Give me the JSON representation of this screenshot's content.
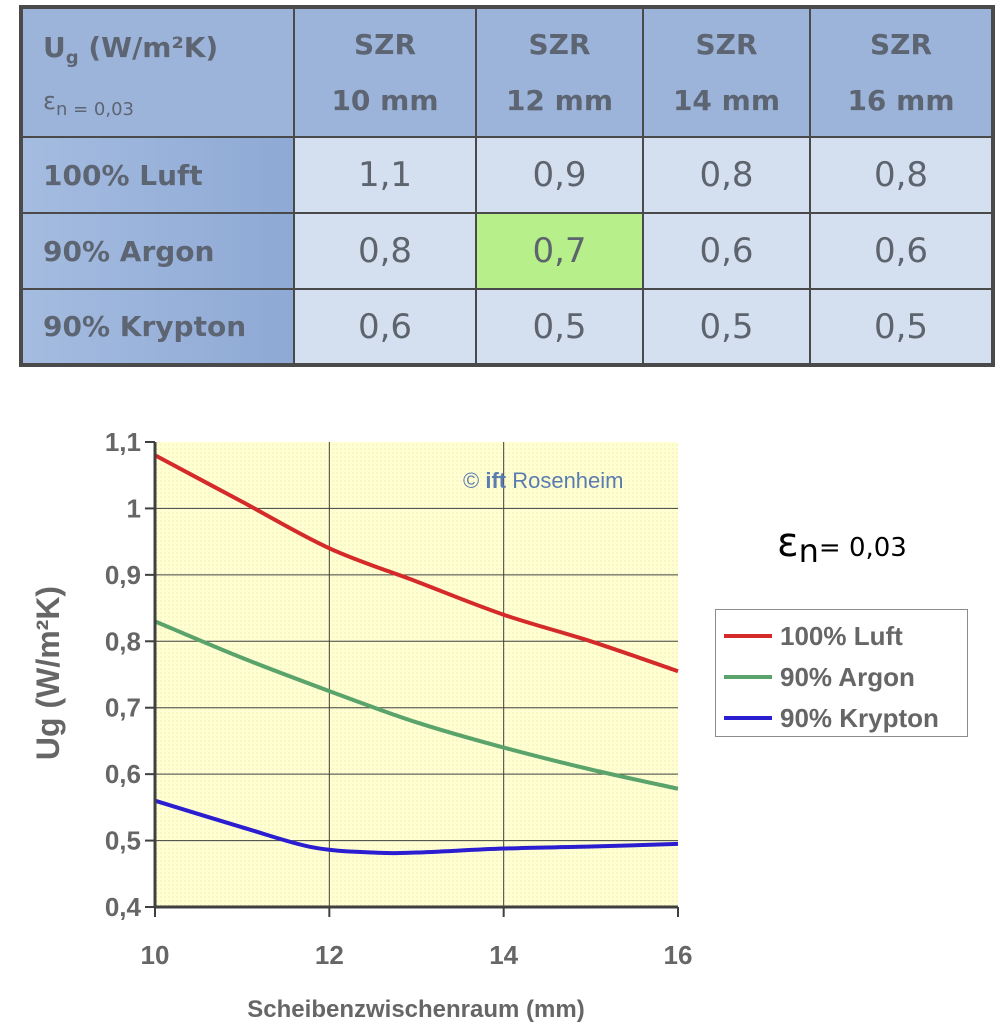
{
  "table": {
    "corner_title_main": "U",
    "corner_title_sub": "g",
    "corner_title_unit": " (W/m²K)",
    "corner_eps_symbol": "ε",
    "corner_eps_sub": "n = 0,03",
    "columns": [
      {
        "line1": "SZR",
        "line2": "10 mm"
      },
      {
        "line1": "SZR",
        "line2": "12 mm"
      },
      {
        "line1": "SZR",
        "line2": "14 mm"
      },
      {
        "line1": "SZR",
        "line2": "16 mm"
      }
    ],
    "rows": [
      {
        "label": "100% Luft",
        "values": [
          "1,1",
          "0,9",
          "0,8",
          "0,8"
        ]
      },
      {
        "label": "90% Argon",
        "values": [
          "0,8",
          "0,7",
          "0,6",
          "0,6"
        ]
      },
      {
        "label": "90% Krypton",
        "values": [
          "0,6",
          "0,5",
          "0,5",
          "0,5"
        ]
      }
    ],
    "highlight_color": "#b7f08a"
  },
  "chart_data": {
    "type": "line",
    "title": "",
    "xlabel": "Scheibenzwischenraum (mm)",
    "ylabel": "Ug (W/m²K)",
    "xlim": [
      10,
      16
    ],
    "ylim": [
      0.4,
      1.1
    ],
    "x_ticks": [
      "10",
      "12",
      "14",
      "16"
    ],
    "y_ticks": [
      "1,1",
      "1",
      "0,9",
      "0,8",
      "0,7",
      "0,6",
      "0,5",
      "0,4"
    ],
    "grid": true,
    "legend_position": "right",
    "watermark_prefix": "© ",
    "watermark_bold": "ift",
    "watermark_rest": " Rosenheim",
    "annotation_symbol": "ε",
    "annotation_sub": "n",
    "annotation_text": "= 0,03",
    "series": [
      {
        "name": "100% Luft",
        "color": "#d42a2a",
        "x": [
          10,
          11,
          12,
          13,
          14,
          15,
          16
        ],
        "y": [
          1.08,
          1.01,
          0.94,
          0.89,
          0.84,
          0.8,
          0.755
        ]
      },
      {
        "name": "90% Argon",
        "color": "#5aa36b",
        "x": [
          10,
          11,
          12,
          13,
          14,
          15,
          16
        ],
        "y": [
          0.83,
          0.775,
          0.725,
          0.678,
          0.64,
          0.607,
          0.578
        ]
      },
      {
        "name": "90% Krypton",
        "color": "#2a1ed0",
        "x": [
          10,
          11,
          11.8,
          12.5,
          13,
          14,
          15,
          16
        ],
        "y": [
          0.56,
          0.52,
          0.49,
          0.482,
          0.482,
          0.488,
          0.491,
          0.495
        ]
      }
    ]
  }
}
